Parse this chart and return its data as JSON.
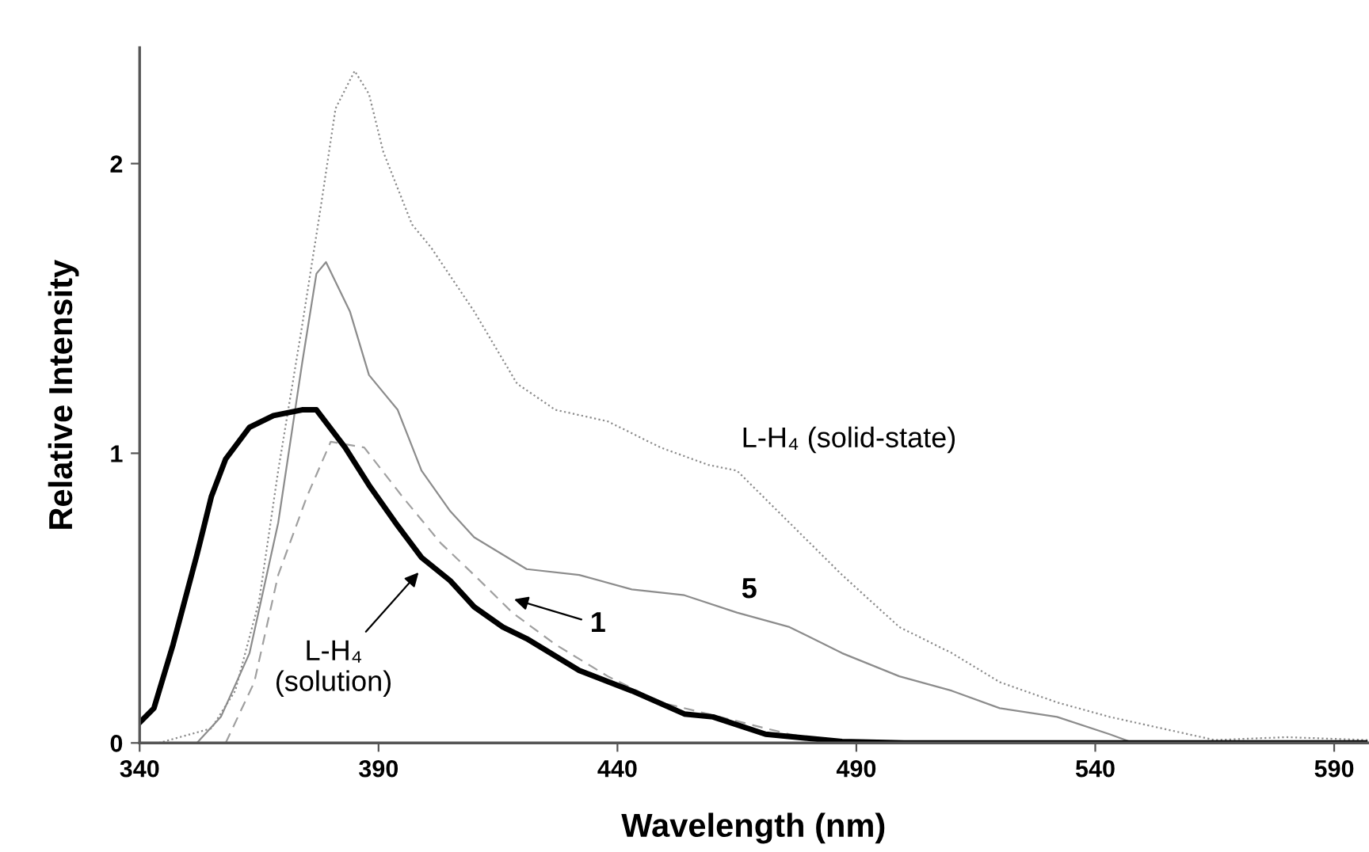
{
  "chart_data": {
    "type": "line",
    "xlabel": "Wavelength (nm)",
    "ylabel": "Relative Intensity",
    "xlim": [
      340,
      597
    ],
    "ylim": [
      0,
      2.4
    ],
    "xticks": [
      340,
      390,
      440,
      490,
      540,
      590
    ],
    "yticks": [
      0,
      1,
      2
    ],
    "grid": false,
    "legend": false,
    "marker": "none",
    "series": [
      {
        "color": "#8c8c8c",
        "line_style": "dotted",
        "x": [
          344,
          355,
          360,
          365,
          369,
          374,
          378,
          381,
          385,
          388,
          391,
          397,
          401,
          410,
          419,
          427,
          438,
          449,
          459,
          465,
          476,
          487,
          499,
          510,
          520,
          532,
          543,
          554,
          565,
          580,
          597
        ],
        "values": [
          0,
          0.05,
          0.18,
          0.49,
          0.94,
          1.44,
          1.86,
          2.19,
          2.32,
          2.24,
          2.04,
          1.79,
          1.71,
          1.49,
          1.24,
          1.15,
          1.11,
          1.02,
          0.96,
          0.94,
          0.76,
          0.58,
          0.4,
          0.31,
          0.21,
          0.14,
          0.09,
          0.05,
          0.01,
          0.02,
          0.01
        ]
      },
      {
        "color": "#8c8c8c",
        "line_style": "solid",
        "x": [
          352,
          357,
          363,
          369,
          374,
          377,
          379,
          384,
          388,
          394,
          399,
          405,
          410,
          421,
          432,
          443,
          454,
          465,
          476,
          487,
          499,
          510,
          520,
          532,
          543,
          548,
          597
        ],
        "values": [
          0,
          0.09,
          0.31,
          0.76,
          1.31,
          1.62,
          1.66,
          1.49,
          1.27,
          1.15,
          0.94,
          0.8,
          0.71,
          0.6,
          0.58,
          0.53,
          0.51,
          0.45,
          0.4,
          0.31,
          0.23,
          0.18,
          0.12,
          0.09,
          0.03,
          0,
          0
        ]
      },
      {
        "color": "#a0a0a0",
        "line_style": "dashed",
        "x": [
          358,
          364,
          369,
          375,
          380,
          387,
          395,
          403,
          410,
          418,
          427,
          438,
          449,
          459,
          476,
          487,
          597
        ],
        "values": [
          0,
          0.21,
          0.58,
          0.85,
          1.04,
          1.02,
          0.85,
          0.69,
          0.58,
          0.45,
          0.34,
          0.23,
          0.14,
          0.1,
          0.03,
          0,
          0
        ]
      },
      {
        "color": "#000000",
        "line_style": "solid",
        "x": [
          340,
          343,
          347,
          352,
          355,
          358,
          363,
          368,
          374,
          377,
          383,
          388,
          394,
          399,
          405,
          410,
          416,
          421,
          432,
          443,
          454,
          460,
          471,
          487,
          500,
          597
        ],
        "values": [
          0.07,
          0.12,
          0.34,
          0.65,
          0.85,
          0.98,
          1.09,
          1.13,
          1.15,
          1.15,
          1.02,
          0.89,
          0.75,
          0.64,
          0.56,
          0.47,
          0.4,
          0.36,
          0.25,
          0.18,
          0.1,
          0.09,
          0.03,
          0.005,
          0,
          0
        ]
      }
    ],
    "annotations": [
      {
        "text": "L-H₄ (solid-state)",
        "x": 465,
        "y": 0.94
      },
      {
        "text": "5",
        "x": 465,
        "y": 0.45
      },
      {
        "text": "1",
        "x": 417.5,
        "y": 0.5
      },
      {
        "text": "L-H₄\n(solution)",
        "x": 399,
        "y": 0.6
      }
    ]
  }
}
